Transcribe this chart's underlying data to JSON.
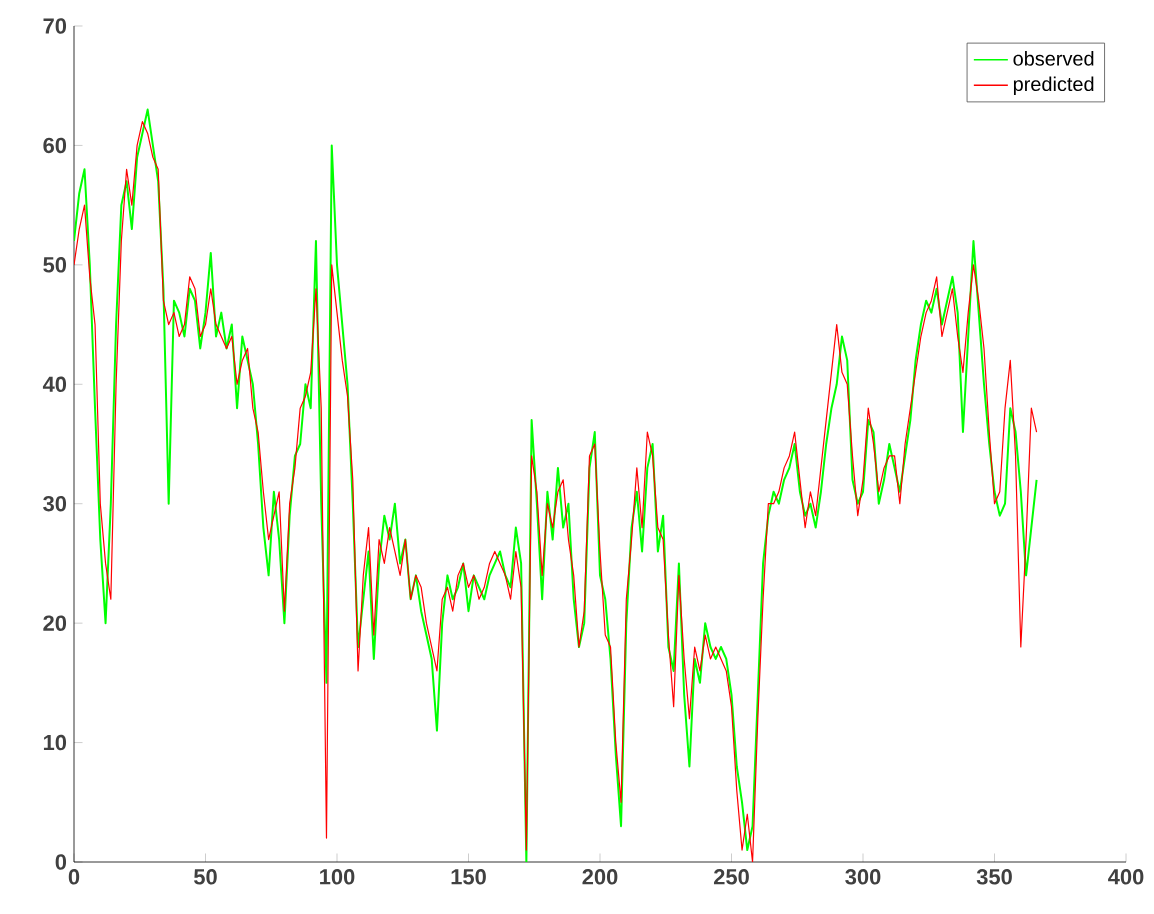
{
  "chart_data": {
    "type": "line",
    "x": [
      0,
      2,
      4,
      6,
      8,
      10,
      12,
      14,
      16,
      18,
      20,
      22,
      24,
      26,
      28,
      30,
      32,
      34,
      36,
      38,
      40,
      42,
      44,
      46,
      48,
      50,
      52,
      54,
      56,
      58,
      60,
      62,
      64,
      66,
      68,
      70,
      72,
      74,
      76,
      78,
      80,
      82,
      84,
      86,
      88,
      90,
      92,
      94,
      96,
      98,
      100,
      102,
      104,
      106,
      108,
      110,
      112,
      114,
      116,
      118,
      120,
      122,
      124,
      126,
      128,
      130,
      132,
      134,
      136,
      138,
      140,
      142,
      144,
      146,
      148,
      150,
      152,
      154,
      156,
      158,
      160,
      162,
      164,
      166,
      168,
      170,
      172,
      174,
      176,
      178,
      180,
      182,
      184,
      186,
      188,
      190,
      192,
      194,
      196,
      198,
      200,
      202,
      204,
      206,
      208,
      210,
      212,
      214,
      216,
      218,
      220,
      222,
      224,
      226,
      228,
      230,
      232,
      234,
      236,
      238,
      240,
      242,
      244,
      246,
      248,
      250,
      252,
      254,
      256,
      258,
      260,
      262,
      264,
      266,
      268,
      270,
      272,
      274,
      276,
      278,
      280,
      282,
      284,
      286,
      288,
      290,
      292,
      294,
      296,
      298,
      300,
      302,
      304,
      306,
      308,
      310,
      312,
      314,
      316,
      318,
      320,
      322,
      324,
      326,
      328,
      330,
      332,
      334,
      336,
      338,
      340,
      342,
      344,
      346,
      348,
      350,
      352,
      354,
      356,
      358,
      360,
      362,
      364,
      366
    ],
    "series": [
      {
        "name": "observed",
        "color": "#00ff00",
        "values": [
          52,
          56,
          58,
          50,
          38,
          27,
          20,
          30,
          45,
          55,
          57,
          53,
          59,
          61,
          63,
          60,
          57,
          48,
          30,
          47,
          46,
          44,
          48,
          47,
          43,
          46,
          51,
          44,
          46,
          43,
          45,
          38,
          44,
          42,
          40,
          35,
          28,
          24,
          31,
          27,
          20,
          29,
          34,
          35,
          40,
          38,
          52,
          30,
          15,
          60,
          50,
          45,
          40,
          30,
          18,
          22,
          26,
          17,
          25,
          29,
          27,
          30,
          25,
          27,
          22,
          24,
          21,
          19,
          17,
          11,
          20,
          24,
          22,
          23,
          25,
          21,
          24,
          23,
          22,
          24,
          25,
          26,
          24,
          23,
          28,
          25,
          0,
          37,
          30,
          22,
          31,
          27,
          33,
          28,
          30,
          22,
          18,
          20,
          33,
          36,
          24,
          22,
          17,
          9,
          3,
          20,
          28,
          31,
          26,
          33,
          35,
          26,
          29,
          18,
          16,
          25,
          14,
          8,
          17,
          15,
          20,
          18,
          17,
          18,
          17,
          14,
          8,
          5,
          1,
          3,
          14,
          25,
          29,
          31,
          30,
          32,
          33,
          35,
          31,
          29,
          30,
          28,
          31,
          35,
          38,
          40,
          44,
          42,
          32,
          30,
          31,
          37,
          36,
          30,
          32,
          35,
          33,
          31,
          34,
          37,
          42,
          45,
          47,
          46,
          48,
          45,
          47,
          49,
          46,
          36,
          44,
          52,
          46,
          40,
          35,
          31,
          29,
          30,
          38,
          36,
          31,
          24,
          28,
          32
        ]
      },
      {
        "name": "predicted",
        "color": "#ff0000",
        "values": [
          50,
          53,
          55,
          49,
          45,
          30,
          25,
          22,
          40,
          52,
          58,
          55,
          60,
          62,
          61,
          59,
          58,
          47,
          45,
          46,
          44,
          45,
          49,
          48,
          44,
          45,
          48,
          45,
          44,
          43,
          44,
          40,
          42,
          43,
          38,
          36,
          31,
          27,
          29,
          31,
          21,
          30,
          33,
          38,
          39,
          41,
          48,
          38,
          2,
          50,
          46,
          42,
          39,
          32,
          16,
          24,
          28,
          19,
          27,
          25,
          28,
          26,
          24,
          27,
          22,
          24,
          23,
          20,
          18,
          16,
          22,
          23,
          21,
          24,
          25,
          23,
          24,
          22,
          23,
          25,
          26,
          25,
          24,
          22,
          26,
          23,
          1,
          34,
          31,
          24,
          30,
          28,
          31,
          32,
          27,
          24,
          18,
          21,
          34,
          35,
          26,
          19,
          18,
          10,
          5,
          22,
          27,
          33,
          28,
          36,
          34,
          28,
          27,
          19,
          13,
          24,
          17,
          12,
          18,
          16,
          19,
          17,
          18,
          17,
          16,
          13,
          6,
          1,
          4,
          0,
          12,
          22,
          30,
          30,
          31,
          33,
          34,
          36,
          32,
          28,
          31,
          29,
          33,
          37,
          41,
          45,
          41,
          40,
          34,
          29,
          32,
          38,
          35,
          31,
          33,
          34,
          34,
          30,
          35,
          38,
          41,
          44,
          46,
          47,
          49,
          44,
          46,
          48,
          44,
          41,
          46,
          50,
          47,
          43,
          36,
          30,
          31,
          38,
          42,
          34,
          18,
          27,
          38,
          36
        ]
      }
    ],
    "xlim": [
      0,
      400
    ],
    "xticks": [
      0,
      50,
      100,
      150,
      200,
      250,
      300,
      350,
      400
    ],
    "ylim": [
      0,
      70
    ],
    "yticks": [
      0,
      10,
      20,
      30,
      40,
      50,
      60,
      70
    ],
    "legend": "top right",
    "grid": false,
    "marker": "none",
    "line_style": "solid"
  }
}
